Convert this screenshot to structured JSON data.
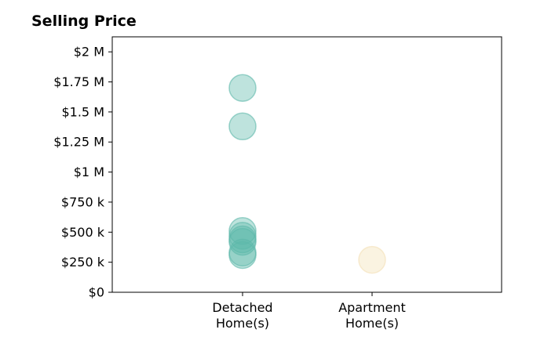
{
  "chart_data": {
    "type": "scatter",
    "title": "Selling Price",
    "xlabel": "",
    "ylabel": "",
    "categories": [
      "Detached\nHome(s)",
      "Apartment\nHome(s)"
    ],
    "y_ticks": [
      "$0",
      "$250 k",
      "$500 k",
      "$750 k",
      "$1 M",
      "$1.25 M",
      "$1.5 M",
      "$1.75 M",
      "$2 M"
    ],
    "y_tick_values": [
      0,
      250000,
      500000,
      750000,
      1000000,
      1250000,
      1500000,
      1750000,
      2000000
    ],
    "ylim": [
      0,
      2125000
    ],
    "grid": false,
    "series": [
      {
        "category": "Detached\nHome(s)",
        "color": "#5db8aa",
        "values": [
          1700000,
          1380000,
          510000,
          470000,
          440000,
          420000,
          330000,
          310000
        ]
      },
      {
        "category": "Apartment\nHome(s)",
        "color": "#f3e0b5",
        "values": [
          270000
        ]
      }
    ]
  }
}
